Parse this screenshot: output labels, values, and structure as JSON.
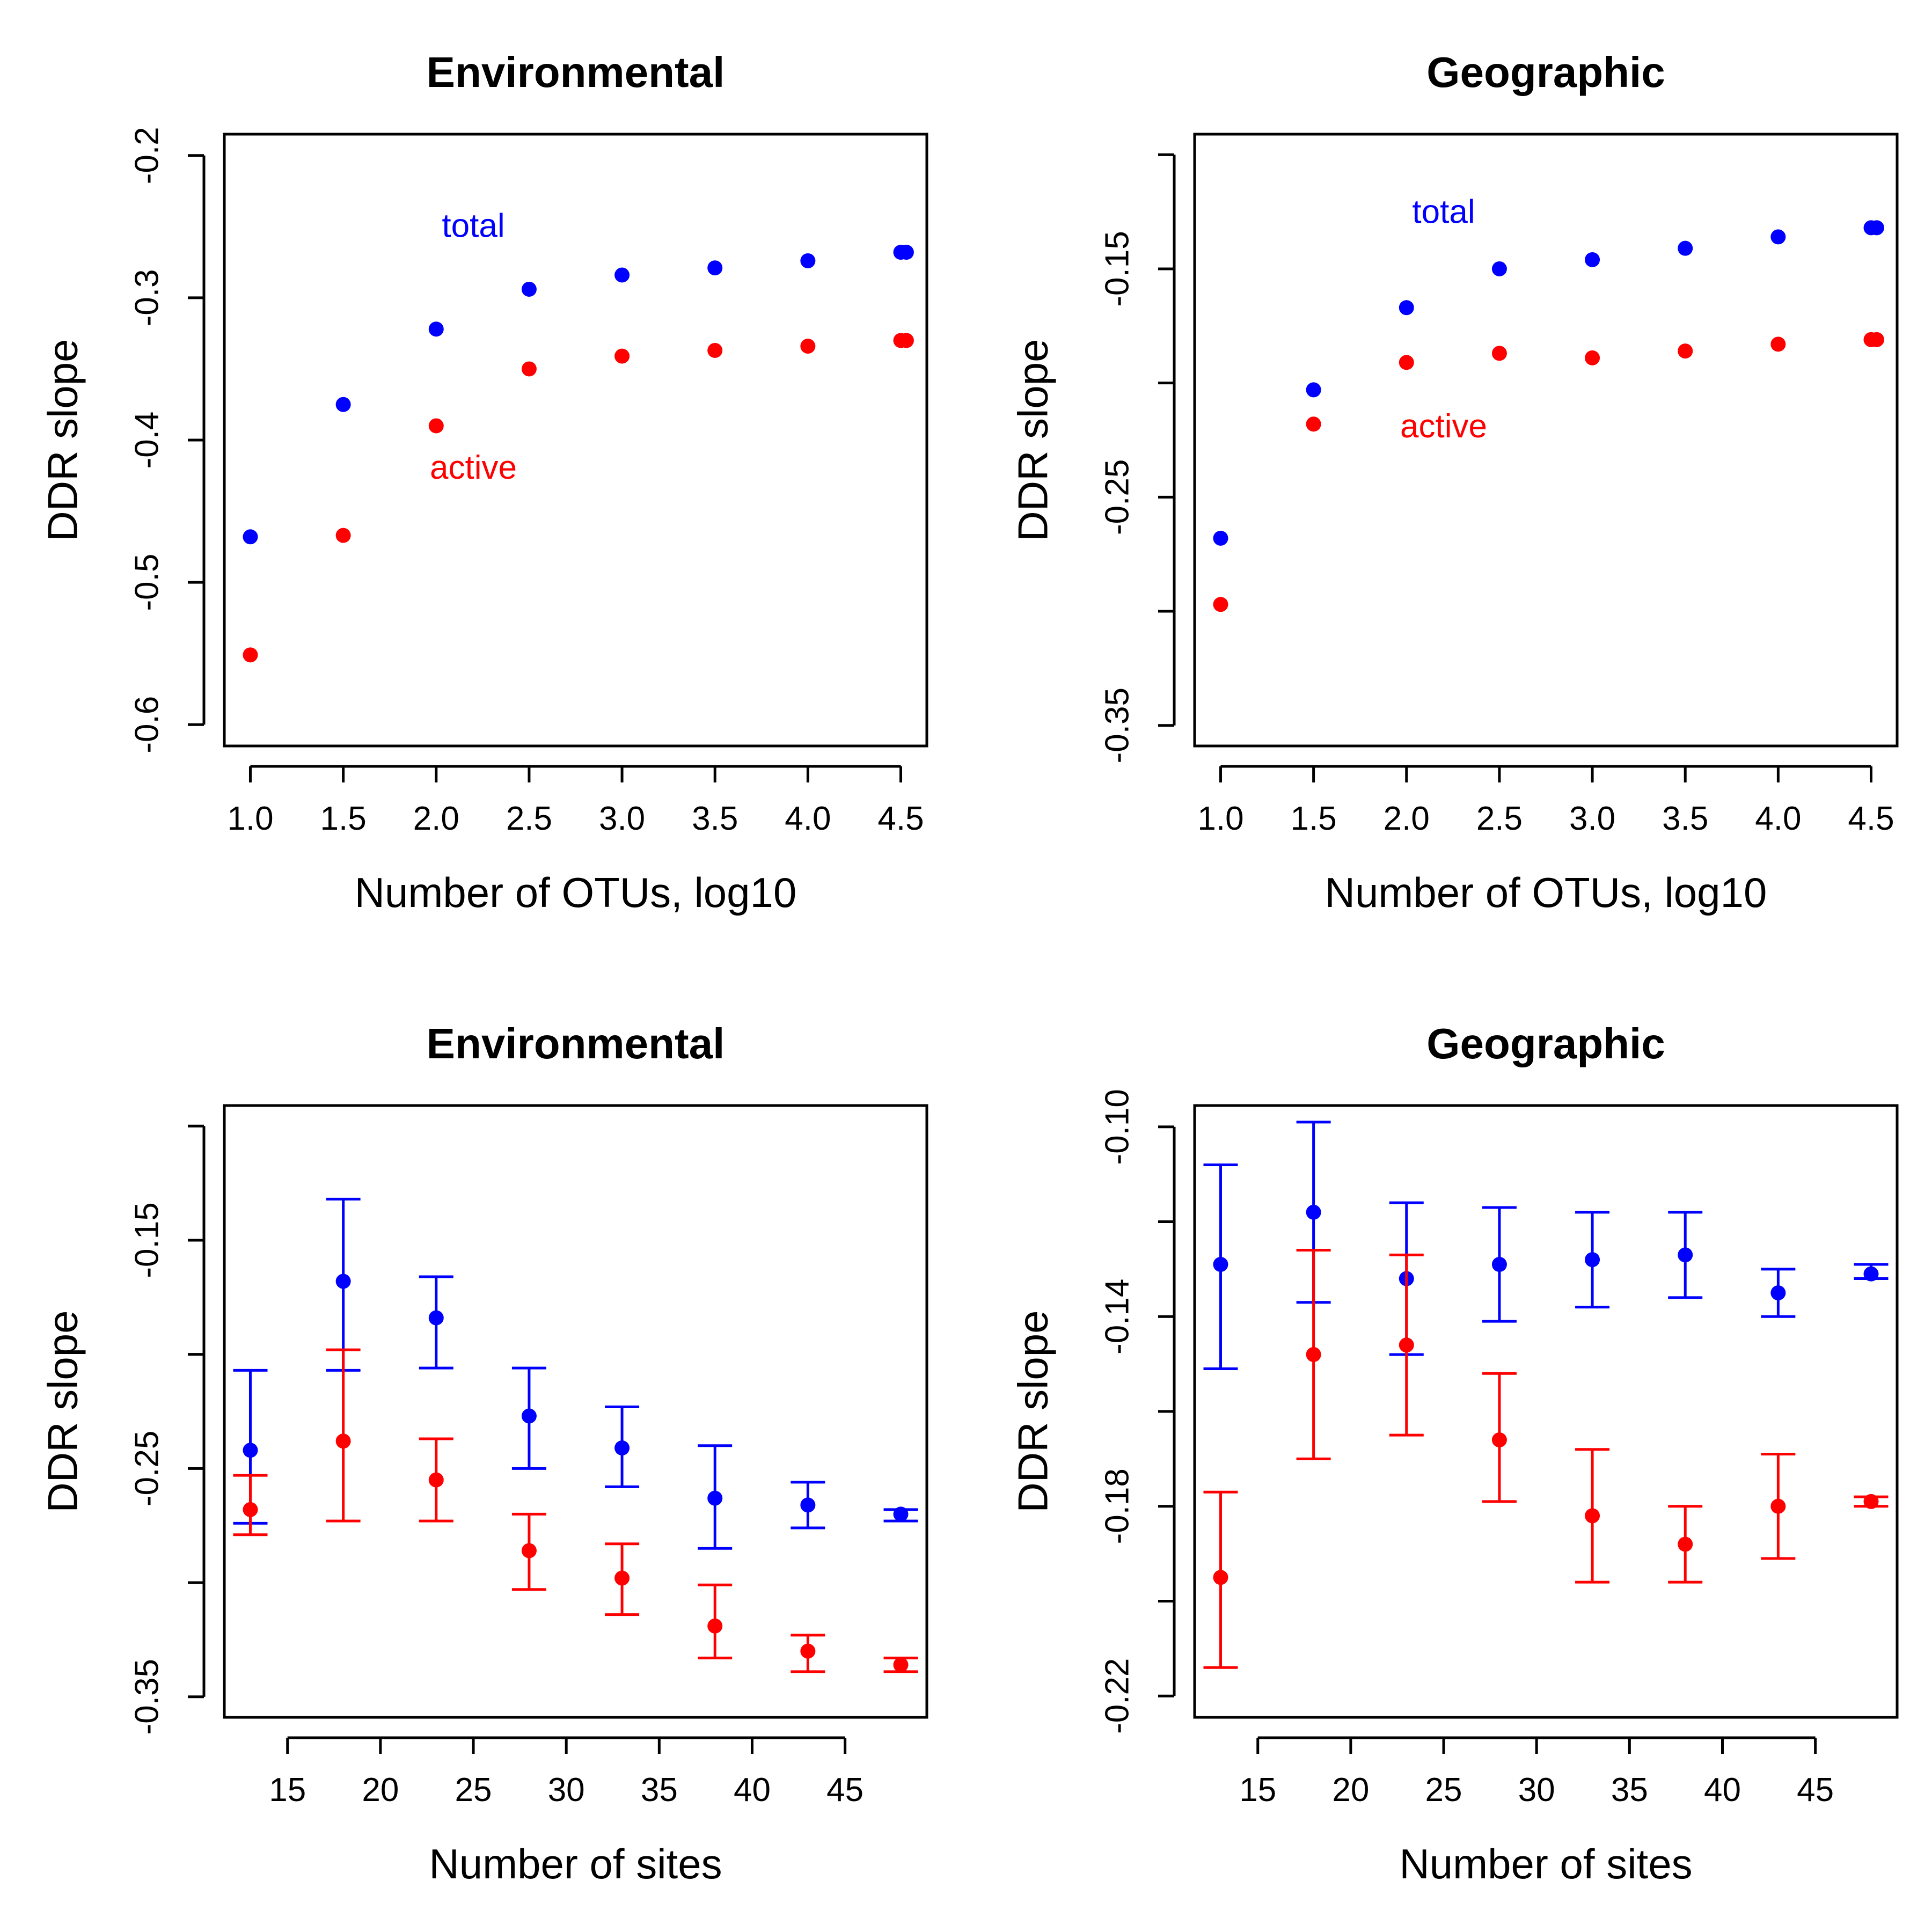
{
  "chart_data": [
    {
      "type": "scatter",
      "title": "Environmental",
      "xlabel": "Number of OTUs, log10",
      "ylabel": "DDR slope",
      "xlim": [
        0.86,
        4.64
      ],
      "ylim": [
        -0.615,
        -0.185
      ],
      "xticks": [
        1.0,
        1.5,
        2.0,
        2.5,
        3.0,
        3.5,
        4.0,
        4.5
      ],
      "xtick_labels": [
        "1.0",
        "1.5",
        "2.0",
        "2.5",
        "3.0",
        "3.5",
        "4.0",
        "4.5"
      ],
      "yticks": [
        -0.2,
        -0.3,
        -0.4,
        -0.5,
        -0.6
      ],
      "ytick_labels": [
        "-0.2",
        "-0.3",
        "-0.4",
        "-0.5",
        "-0.6"
      ],
      "grid": false,
      "series": [
        {
          "name": "total",
          "color": "#0000ff",
          "x": [
            1.0,
            1.5,
            2.0,
            2.5,
            3.0,
            3.5,
            4.0,
            4.5,
            4.53
          ],
          "y": [
            -0.468,
            -0.375,
            -0.322,
            -0.294,
            -0.284,
            -0.279,
            -0.274,
            -0.268,
            -0.268
          ]
        },
        {
          "name": "active",
          "color": "#ff0000",
          "x": [
            1.0,
            1.5,
            2.0,
            2.5,
            3.0,
            3.5,
            4.0,
            4.5,
            4.53
          ],
          "y": [
            -0.551,
            -0.467,
            -0.39,
            -0.35,
            -0.341,
            -0.337,
            -0.334,
            -0.33,
            -0.33
          ]
        }
      ],
      "annotations": [
        {
          "text": "total",
          "x": 2.2,
          "y": -0.251,
          "color": "#0000ff"
        },
        {
          "text": "active",
          "x": 2.2,
          "y": -0.421,
          "color": "#ff0000"
        }
      ]
    },
    {
      "type": "scatter",
      "title": "Geographic",
      "xlabel": "Number of OTUs, log10",
      "ylabel": "DDR slope",
      "xlim": [
        0.86,
        4.64
      ],
      "ylim": [
        -0.359,
        -0.091
      ],
      "xticks": [
        1.0,
        1.5,
        2.0,
        2.5,
        3.0,
        3.5,
        4.0,
        4.5
      ],
      "xtick_labels": [
        "1.0",
        "1.5",
        "2.0",
        "2.5",
        "3.0",
        "3.5",
        "4.0",
        "4.5"
      ],
      "yticks": [
        -0.15,
        -0.25,
        -0.35
      ],
      "ytick_labels": [
        "-0.15",
        "-0.25",
        "-0.35"
      ],
      "extra_ticks": [
        -0.1,
        -0.2,
        -0.3
      ],
      "grid": false,
      "series": [
        {
          "name": "total",
          "color": "#0000ff",
          "x": [
            1.0,
            1.5,
            2.0,
            2.5,
            3.0,
            3.5,
            4.0,
            4.5,
            4.53
          ],
          "y": [
            -0.268,
            -0.203,
            -0.167,
            -0.15,
            -0.146,
            -0.141,
            -0.136,
            -0.132,
            -0.132
          ]
        },
        {
          "name": "active",
          "color": "#ff0000",
          "x": [
            1.0,
            1.5,
            2.0,
            2.5,
            3.0,
            3.5,
            4.0,
            4.5,
            4.53
          ],
          "y": [
            -0.297,
            -0.218,
            -0.191,
            -0.187,
            -0.189,
            -0.186,
            -0.183,
            -0.181,
            -0.181
          ]
        }
      ],
      "annotations": [
        {
          "text": "total",
          "x": 2.2,
          "y": -0.126,
          "color": "#0000ff"
        },
        {
          "text": "active",
          "x": 2.2,
          "y": -0.22,
          "color": "#ff0000"
        }
      ]
    },
    {
      "type": "scatter",
      "title": "Environmental",
      "xlabel": "Number of sites",
      "ylabel": "DDR slope",
      "xlim": [
        11.6,
        49.4
      ],
      "ylim": [
        -0.359,
        -0.091
      ],
      "xticks": [
        15,
        20,
        25,
        30,
        35,
        40,
        45
      ],
      "xtick_labels": [
        "15",
        "20",
        "25",
        "30",
        "35",
        "40",
        "45"
      ],
      "yticks": [
        -0.15,
        -0.25,
        -0.35
      ],
      "ytick_labels": [
        "-0.15",
        "-0.25",
        "-0.35"
      ],
      "extra_ticks": [
        -0.1,
        -0.2,
        -0.3
      ],
      "grid": false,
      "series": [
        {
          "name": "total",
          "color": "#0000ff",
          "x": [
            13,
            18,
            23,
            28,
            33,
            38,
            43,
            48
          ],
          "y": [
            -0.242,
            -0.168,
            -0.184,
            -0.227,
            -0.241,
            -0.263,
            -0.266,
            -0.27
          ],
          "lower": [
            -0.274,
            -0.207,
            -0.206,
            -0.25,
            -0.258,
            -0.285,
            -0.276,
            -0.273
          ],
          "upper": [
            -0.207,
            -0.132,
            -0.166,
            -0.206,
            -0.223,
            -0.24,
            -0.256,
            -0.268
          ]
        },
        {
          "name": "active",
          "color": "#ff0000",
          "x": [
            13,
            18,
            23,
            28,
            33,
            38,
            43,
            48
          ],
          "y": [
            -0.268,
            -0.238,
            -0.255,
            -0.286,
            -0.298,
            -0.319,
            -0.33,
            -0.336
          ],
          "lower": [
            -0.279,
            -0.273,
            -0.273,
            -0.303,
            -0.314,
            -0.333,
            -0.339,
            -0.339
          ],
          "upper": [
            -0.253,
            -0.198,
            -0.237,
            -0.27,
            -0.283,
            -0.301,
            -0.323,
            -0.333
          ]
        }
      ]
    },
    {
      "type": "scatter",
      "title": "Geographic",
      "xlabel": "Number of sites",
      "ylabel": "DDR slope",
      "xlim": [
        11.6,
        49.4
      ],
      "ylim": [
        -0.2245,
        -0.0955
      ],
      "xticks": [
        15,
        20,
        25,
        30,
        35,
        40,
        45
      ],
      "xtick_labels": [
        "15",
        "20",
        "25",
        "30",
        "35",
        "40",
        "45"
      ],
      "yticks": [
        -0.1,
        -0.14,
        -0.18,
        -0.22
      ],
      "ytick_labels": [
        "-0.10",
        "-0.14",
        "-0.18",
        "-0.22"
      ],
      "extra_ticks": [
        -0.12,
        -0.16,
        -0.2
      ],
      "grid": false,
      "series": [
        {
          "name": "total",
          "color": "#0000ff",
          "x": [
            13,
            18,
            23,
            28,
            33,
            38,
            43,
            48
          ],
          "y": [
            -0.129,
            -0.118,
            -0.132,
            -0.129,
            -0.128,
            -0.127,
            -0.135,
            -0.131
          ],
          "lower": [
            -0.151,
            -0.137,
            -0.148,
            -0.141,
            -0.138,
            -0.136,
            -0.14,
            -0.132
          ],
          "upper": [
            -0.108,
            -0.099,
            -0.116,
            -0.117,
            -0.118,
            -0.118,
            -0.13,
            -0.129
          ]
        },
        {
          "name": "active",
          "color": "#ff0000",
          "x": [
            13,
            18,
            23,
            28,
            33,
            38,
            43,
            48
          ],
          "y": [
            -0.195,
            -0.148,
            -0.146,
            -0.166,
            -0.182,
            -0.188,
            -0.18,
            -0.179
          ],
          "lower": [
            -0.214,
            -0.17,
            -0.165,
            -0.179,
            -0.196,
            -0.196,
            -0.191,
            -0.18
          ],
          "upper": [
            -0.177,
            -0.126,
            -0.127,
            -0.152,
            -0.168,
            -0.18,
            -0.169,
            -0.178
          ]
        }
      ]
    }
  ]
}
